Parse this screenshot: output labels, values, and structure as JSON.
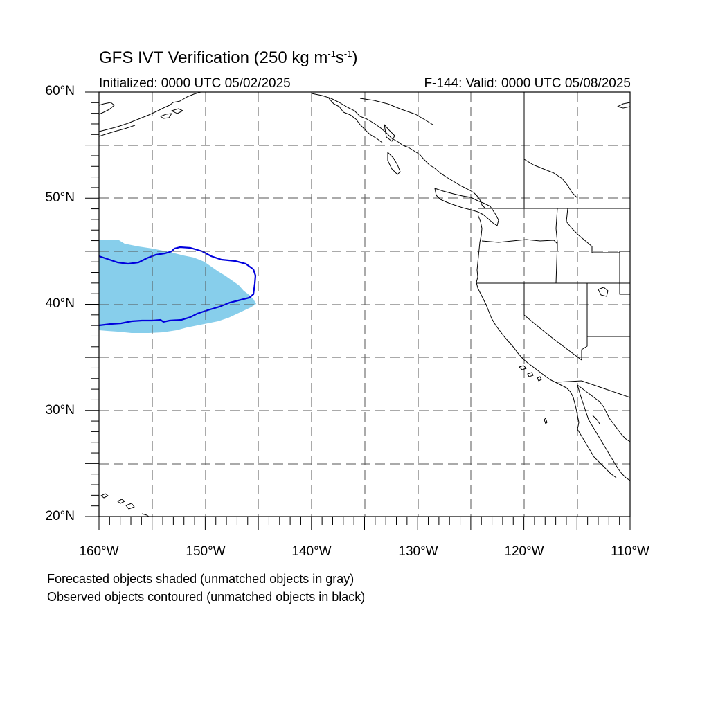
{
  "title": {
    "main": "GFS IVT Verification (250 kg m",
    "sup1": "-1",
    "mid": "s",
    "sup2": "-1",
    "end": ")"
  },
  "initialized": "Initialized: 0000 UTC 05/02/2025",
  "valid": "F-144: Valid: 0000 UTC 05/08/2025",
  "axes": {
    "lat_labels": [
      "60°N",
      "50°N",
      "40°N",
      "30°N",
      "20°N"
    ],
    "lon_labels": [
      "160°W",
      "150°W",
      "140°W",
      "130°W",
      "120°W",
      "110°W"
    ],
    "lat_range": [
      20,
      60
    ],
    "lon_range": [
      -160,
      -110
    ],
    "grid": true
  },
  "legend_notes": [
    "Forecasted objects shaded (unmatched objects in gray)",
    "Observed objects contoured (unmatched objects in black)"
  ],
  "colors": {
    "forecast_shading": "#87ceeb",
    "observed_contour": "#0000dd",
    "coastline": "#000000",
    "gridline": "#555555"
  }
}
